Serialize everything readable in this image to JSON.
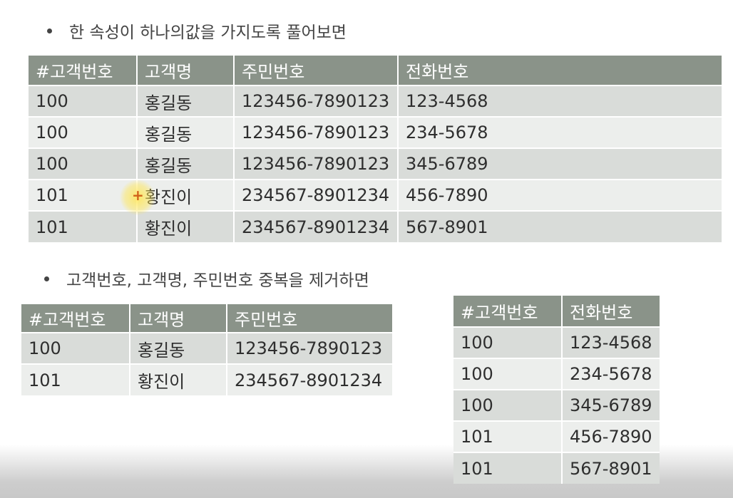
{
  "bullet1": "한 속성이 하나의값을 가지도록 풀어보면",
  "bullet2": "고객번호, 고객명, 주민번호 중복을 제거하면",
  "table1": {
    "headers": [
      "#고객번호",
      "고객명",
      "주민번호",
      "전화번호"
    ],
    "rows": [
      [
        "100",
        "홍길동",
        "123456-7890123",
        "123-4568"
      ],
      [
        "100",
        "홍길동",
        "123456-7890123",
        "234-5678"
      ],
      [
        "100",
        "홍길동",
        "123456-7890123",
        "345-6789"
      ],
      [
        "101",
        "황진이",
        "234567-8901234",
        "456-7890"
      ],
      [
        "101",
        "황진이",
        "234567-8901234",
        "567-8901"
      ]
    ]
  },
  "table2": {
    "headers": [
      "#고객번호",
      "고객명",
      "주민번호"
    ],
    "rows": [
      [
        "100",
        "홍길동",
        "123456-7890123"
      ],
      [
        "101",
        "황진이",
        "234567-8901234"
      ]
    ]
  },
  "table3": {
    "headers": [
      "#고객번호",
      "전화번호"
    ],
    "rows": [
      [
        "100",
        "123-4568"
      ],
      [
        "100",
        "234-5678"
      ],
      [
        "100",
        "345-6789"
      ],
      [
        "101",
        "456-7890"
      ],
      [
        "101",
        "567-8901"
      ]
    ]
  },
  "cursor": {
    "icon": "crosshair-plus-icon",
    "symbol": "+",
    "highlight_color": "#ffe650"
  },
  "colors": {
    "header_bg": "#8a9389",
    "row_dark": "#d9dcd9",
    "row_light": "#eceeec"
  }
}
